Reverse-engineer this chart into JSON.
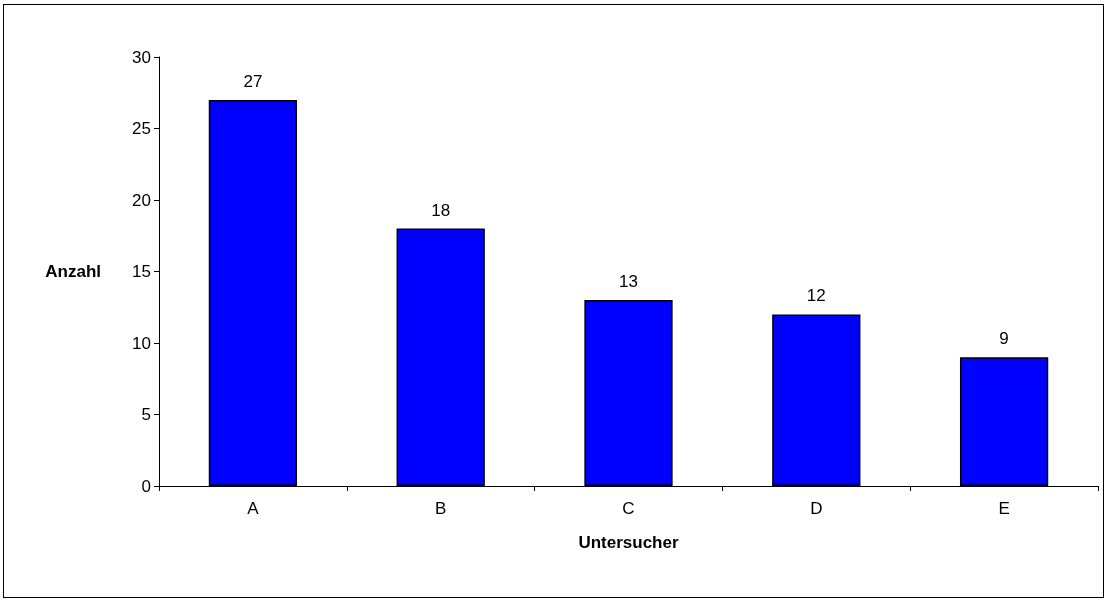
{
  "chart_data": {
    "type": "bar",
    "xlabel": "Untersucher",
    "ylabel": "Anzahl",
    "categories": [
      "A",
      "B",
      "C",
      "D",
      "E"
    ],
    "values": [
      27,
      18,
      13,
      12,
      9
    ],
    "color": "#0000ff",
    "ylim": [
      0,
      30
    ],
    "yticks": [
      0,
      5,
      10,
      15,
      20,
      25,
      30
    ],
    "grid": false,
    "data_labels": true
  }
}
